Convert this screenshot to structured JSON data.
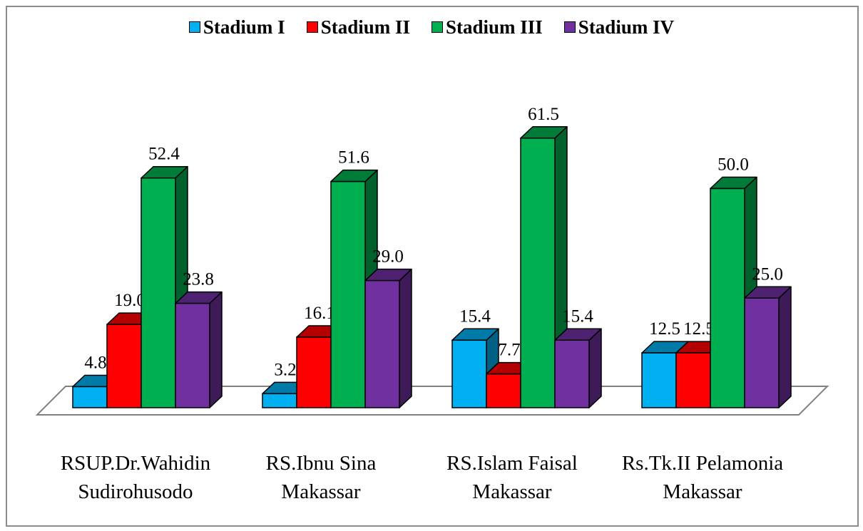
{
  "chart_data": {
    "type": "bar",
    "style": "3d-clustered-column",
    "categories": [
      "RSUP.Dr.Wahidin Sudirohusodo",
      "RS.Ibnu Sina Makassar",
      "RS.Islam Faisal Makassar",
      "Rs.Tk.II Pelamonia Makassar"
    ],
    "category_lines": [
      [
        "RSUP.Dr.Wahidin",
        "Sudirohusodo"
      ],
      [
        "RS.Ibnu Sina",
        "Makassar"
      ],
      [
        "RS.Islam Faisal",
        "Makassar"
      ],
      [
        "Rs.Tk.II Pelamonia",
        "Makassar"
      ]
    ],
    "series": [
      {
        "name": "Stadium I",
        "color": "#00b0f0",
        "values": [
          4.8,
          3.2,
          15.4,
          12.5
        ],
        "labels": [
          "4.8",
          "3.2",
          "15.4",
          "12.5"
        ]
      },
      {
        "name": "Stadium II",
        "color": "#ff0000",
        "values": [
          19.0,
          16.1,
          7.7,
          12.5
        ],
        "labels": [
          "19.0",
          "16.1",
          "7.7",
          "12.5"
        ]
      },
      {
        "name": "Stadium III",
        "color": "#00b050",
        "values": [
          52.4,
          51.6,
          61.5,
          50.0
        ],
        "labels": [
          "52.4",
          "51.6",
          "61.5",
          "50.0"
        ]
      },
      {
        "name": "Stadium IV",
        "color": "#7030a0",
        "values": [
          23.8,
          29.0,
          15.4,
          25.0
        ],
        "labels": [
          "23.8",
          "29.0",
          "15.4",
          "25.0"
        ]
      }
    ],
    "legend_position": "top",
    "grid": false,
    "ylim": [
      0,
      65
    ],
    "title": "",
    "xlabel": "",
    "ylabel": ""
  }
}
